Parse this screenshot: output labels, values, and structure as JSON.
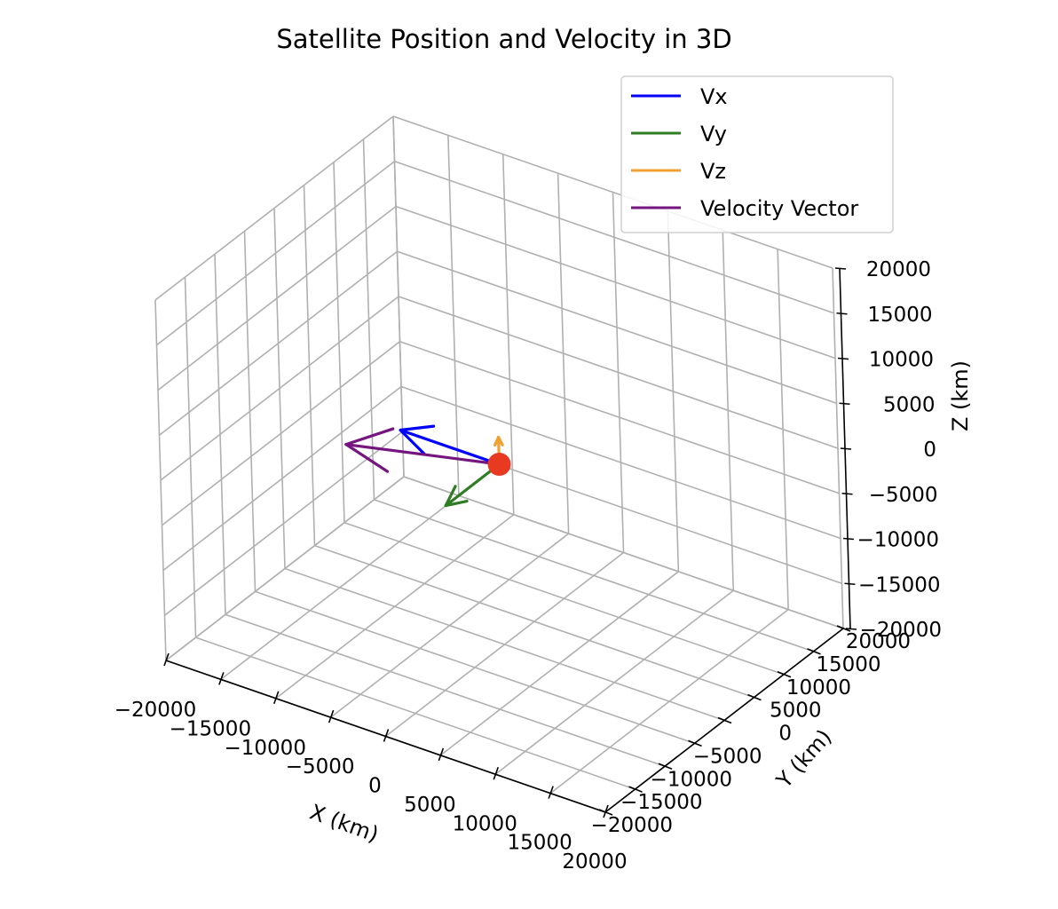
{
  "chart_data": {
    "type": "quiver3d",
    "title": "Satellite Position and Velocity in 3D",
    "xlabel": "X (km)",
    "ylabel": "Y (km)",
    "zlabel": "Z (km)",
    "xlim": [
      -20000,
      20000
    ],
    "ylim": [
      -20000,
      20000
    ],
    "zlim": [
      -20000,
      20000
    ],
    "ticks": [
      -20000,
      -15000,
      -10000,
      -5000,
      0,
      5000,
      10000,
      15000,
      20000
    ],
    "tick_labels": [
      "−20000",
      "−15000",
      "−10000",
      "−5000",
      "0",
      "5000",
      "10000",
      "15000",
      "20000"
    ],
    "grid": true,
    "legend_position": "top-right",
    "legend": [
      {
        "label": "Vx",
        "color": "#0000ff"
      },
      {
        "label": "Vy",
        "color": "#2e7d22"
      },
      {
        "label": "Vz",
        "color": "#f0a030"
      },
      {
        "label": "Velocity Vector",
        "color": "#75157f"
      }
    ],
    "satellite": {
      "x": 0,
      "y": 0,
      "z": 0,
      "color": "#e83a20"
    },
    "vectors": [
      {
        "name": "Vx",
        "dx": -9000,
        "dy": 0,
        "dz": 0
      },
      {
        "name": "Vy",
        "dx": 0,
        "dy": -9000,
        "dz": 0
      },
      {
        "name": "Vz",
        "dx": 0,
        "dy": 0,
        "dz": 3000
      },
      {
        "name": "Velocity Vector",
        "dx": -9000,
        "dy": -9000,
        "dz": 3000
      }
    ]
  }
}
